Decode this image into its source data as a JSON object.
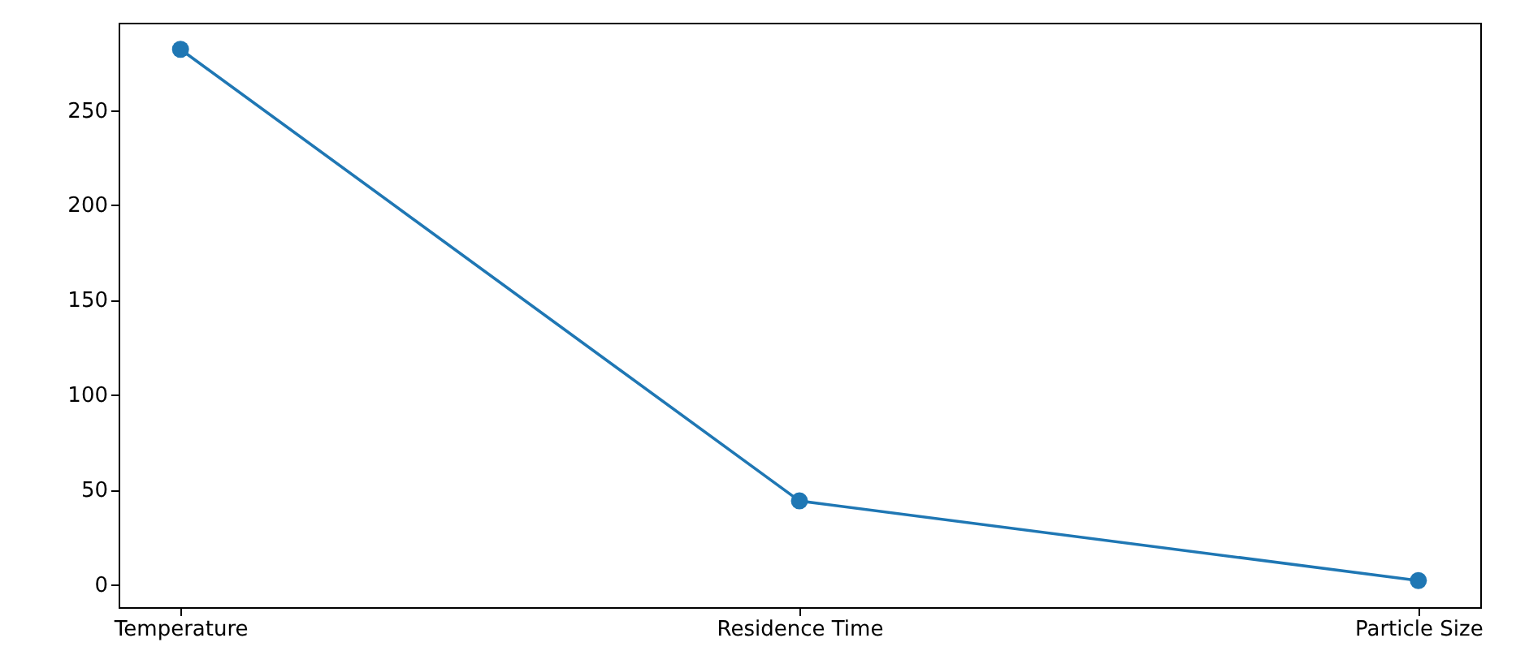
{
  "chart_data": {
    "type": "line",
    "categories": [
      "Temperature",
      "Residence Time",
      "Particle Size"
    ],
    "series": [
      {
        "color": "#1f77b4",
        "values": [
          282,
          44,
          2
        ]
      }
    ],
    "ylim": [
      -12,
      296
    ],
    "yticks": [
      0,
      50,
      100,
      150,
      200,
      250
    ],
    "marker": "circle",
    "line_style": "solid"
  }
}
